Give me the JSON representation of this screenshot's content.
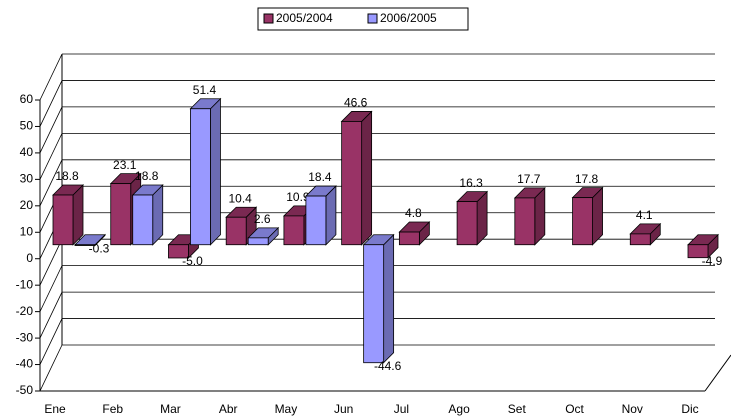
{
  "chart_data": {
    "type": "bar3d",
    "categories": [
      "Ene",
      "Feb",
      "Mar",
      "Abr",
      "May",
      "Jun",
      "Jul",
      "Ago",
      "Set",
      "Oct",
      "Nov",
      "Dic"
    ],
    "series": [
      {
        "name": "2005/2004",
        "color": "#993366",
        "values": [
          18.8,
          23.1,
          -5.0,
          10.4,
          10.9,
          46.6,
          4.8,
          16.3,
          17.7,
          17.8,
          4.1,
          -4.9
        ],
        "value_labels": [
          "18.8",
          "23.1",
          "-5.0",
          "10.4",
          "10.9",
          "46.6",
          "4.8",
          "16.3",
          "17.7",
          "17.8",
          "4.1",
          "-4.9"
        ]
      },
      {
        "name": "2006/2005",
        "color": "#9999ff",
        "values": [
          -0.3,
          18.8,
          51.4,
          2.6,
          18.4,
          -44.6,
          null,
          null,
          null,
          null,
          null,
          null
        ],
        "value_labels": [
          "-0.3",
          "18.8",
          "51.4",
          "2.6",
          "18.4",
          "-44.6",
          null,
          null,
          null,
          null,
          null,
          null
        ]
      }
    ],
    "ylim": [
      -50,
      60
    ],
    "yticks": [
      -50,
      -40,
      -30,
      -20,
      -10,
      0,
      10,
      20,
      30,
      40,
      50,
      60
    ],
    "grid": true,
    "legend": "top"
  }
}
